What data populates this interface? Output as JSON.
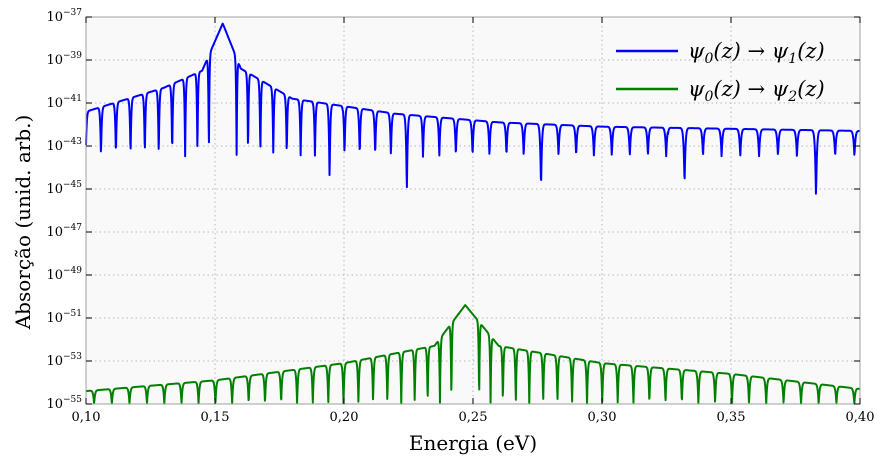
{
  "chart_data": {
    "type": "line",
    "title": "",
    "xlabel": "Energia (eV)",
    "ylabel": "Absorção (unid. arb.)",
    "xlim": [
      0.1,
      0.4
    ],
    "ylim_log10": [
      -55,
      -37
    ],
    "yscale": "log",
    "grid": true,
    "legend_position": "top-right",
    "x_ticks": [
      "0,10",
      "0,15",
      "0,20",
      "0,25",
      "0,30",
      "0,35",
      "0,40"
    ],
    "x_tick_values": [
      0.1,
      0.15,
      0.2,
      0.25,
      0.3,
      0.35,
      0.4
    ],
    "y_ticks": [
      {
        "base": "10",
        "exp": "−55",
        "log10": -55
      },
      {
        "base": "10",
        "exp": "−53",
        "log10": -53
      },
      {
        "base": "10",
        "exp": "−51",
        "log10": -51
      },
      {
        "base": "10",
        "exp": "−49",
        "log10": -49
      },
      {
        "base": "10",
        "exp": "−47",
        "log10": -47
      },
      {
        "base": "10",
        "exp": "−45",
        "log10": -45
      },
      {
        "base": "10",
        "exp": "−43",
        "log10": -43
      },
      {
        "base": "10",
        "exp": "−41",
        "log10": -41
      },
      {
        "base": "10",
        "exp": "−39",
        "log10": -39
      },
      {
        "base": "10",
        "exp": "−37",
        "log10": -37
      }
    ],
    "series": [
      {
        "name": "ψ0(z) → ψ1(z)",
        "color": "#0000ff",
        "peak_energy": 0.153,
        "peak_log10": -37.3,
        "envelope_log10": [
          [
            0.1,
            -41.4
          ],
          [
            0.13,
            -40.3
          ],
          [
            0.145,
            -39.5
          ],
          [
            0.153,
            -37.3
          ],
          [
            0.16,
            -39.4
          ],
          [
            0.18,
            -40.8
          ],
          [
            0.22,
            -41.5
          ],
          [
            0.26,
            -41.9
          ],
          [
            0.3,
            -42.1
          ],
          [
            0.35,
            -42.2
          ],
          [
            0.4,
            -42.3
          ]
        ],
        "minima_log10": -43.5,
        "deep_minima": [
          [
            0.13,
            -43.5
          ],
          [
            0.195,
            -44.6
          ],
          [
            0.225,
            -45.2
          ],
          [
            0.277,
            -45.0
          ],
          [
            0.33,
            -44.8
          ],
          [
            0.383,
            -45.4
          ]
        ]
      },
      {
        "name": "ψ0(z) → ψ2(z)",
        "color": "#008000",
        "peak_energy": 0.247,
        "peak_log10": -50.4,
        "envelope_log10": [
          [
            0.1,
            -54.4
          ],
          [
            0.15,
            -53.9
          ],
          [
            0.2,
            -53.1
          ],
          [
            0.235,
            -52.3
          ],
          [
            0.247,
            -50.4
          ],
          [
            0.26,
            -52.3
          ],
          [
            0.3,
            -53.1
          ],
          [
            0.35,
            -53.6
          ],
          [
            0.4,
            -54.3
          ]
        ],
        "minima_log10": -55.0
      }
    ]
  },
  "legend": {
    "entries": [
      {
        "base": "ψ",
        "sub_a": "0",
        "mid": "(z) → ψ",
        "sub_b": "1",
        "end": "(z)"
      },
      {
        "base": "ψ",
        "sub_a": "0",
        "mid": "(z) → ψ",
        "sub_b": "2",
        "end": "(z)"
      }
    ]
  }
}
